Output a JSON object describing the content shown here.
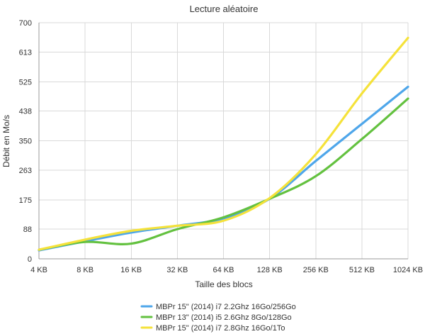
{
  "chart_data": {
    "type": "line",
    "title": "Lecture aléatoire",
    "xlabel": "Taille des blocs",
    "ylabel": "Débit en Mo/s",
    "categories": [
      "4 KB",
      "8 KB",
      "16 KB",
      "32 KB",
      "64 KB",
      "128 KB",
      "256 KB",
      "512 KB",
      "1024 KB"
    ],
    "yticks": [
      "0",
      "88",
      "175",
      "263",
      "350",
      "438",
      "525",
      "613",
      "700"
    ],
    "ylim": [
      0,
      700
    ],
    "grid": true,
    "legend_position": "bottom",
    "series": [
      {
        "name": "MBPr 15\" (2014) i7 2.2Ghz 16Go/256Go",
        "color": "#4ea6ea",
        "values": [
          25,
          52,
          78,
          98,
          120,
          178,
          290,
          400,
          510
        ]
      },
      {
        "name": "MBPr 13\" (2014) i5 2.6Ghz 8Go/128Go",
        "color": "#63c13f",
        "values": [
          27,
          50,
          45,
          88,
          123,
          178,
          245,
          355,
          475
        ]
      },
      {
        "name": "MBPr 15\" (2014) i7 2.8Ghz 16Go/1To",
        "color": "#f5e23a",
        "values": [
          27,
          57,
          83,
          98,
          113,
          180,
          310,
          490,
          655
        ]
      }
    ]
  }
}
